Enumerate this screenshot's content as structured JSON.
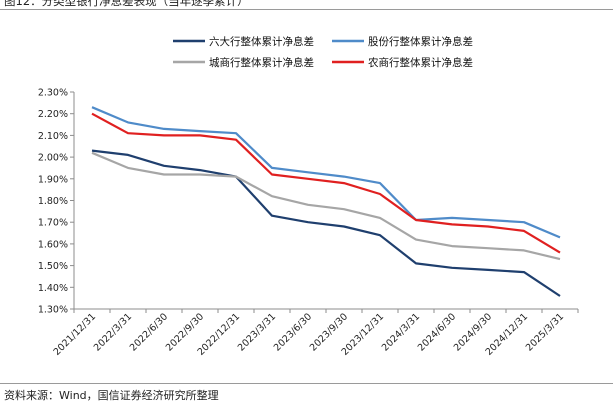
{
  "figure": {
    "title": "图12：分类型银行净息差表现（当年逐季累计）",
    "source": "资料来源：Wind，国信证券经济研究所整理"
  },
  "chart_data": {
    "type": "line",
    "title": "",
    "xlabel": "",
    "ylabel": "",
    "ylim": [
      1.3,
      2.3
    ],
    "y_ticks": [
      "1.30%",
      "1.40%",
      "1.50%",
      "1.60%",
      "1.70%",
      "1.80%",
      "1.90%",
      "2.00%",
      "2.10%",
      "2.20%",
      "2.30%"
    ],
    "categories": [
      "2021/12/31",
      "2022/3/31",
      "2022/6/30",
      "2022/9/30",
      "2022/12/31",
      "2023/3/31",
      "2023/6/30",
      "2023/9/30",
      "2023/12/31",
      "2024/3/31",
      "2024/6/30",
      "2024/9/30",
      "2024/12/31",
      "2025/3/31"
    ],
    "series": [
      {
        "name": "六大行整体累计净息差",
        "color": "#1f3f6e",
        "values": [
          2.03,
          2.01,
          1.96,
          1.94,
          1.91,
          1.73,
          1.7,
          1.68,
          1.64,
          1.51,
          1.49,
          1.48,
          1.47,
          1.36
        ]
      },
      {
        "name": "股份行整体累计净息差",
        "color": "#4f8bc9",
        "values": [
          2.23,
          2.16,
          2.13,
          2.12,
          2.11,
          1.95,
          1.93,
          1.91,
          1.88,
          1.71,
          1.72,
          1.71,
          1.7,
          1.63
        ]
      },
      {
        "name": "城商行整体累计净息差",
        "color": "#a6a6a6",
        "values": [
          2.02,
          1.95,
          1.92,
          1.92,
          1.91,
          1.82,
          1.78,
          1.76,
          1.72,
          1.62,
          1.59,
          1.58,
          1.57,
          1.53
        ]
      },
      {
        "name": "农商行整体累计净息差",
        "color": "#e02020",
        "values": [
          2.2,
          2.11,
          2.1,
          2.1,
          2.08,
          1.92,
          1.9,
          1.88,
          1.83,
          1.71,
          1.69,
          1.68,
          1.66,
          1.56
        ]
      }
    ],
    "legend_position": "top-center"
  }
}
